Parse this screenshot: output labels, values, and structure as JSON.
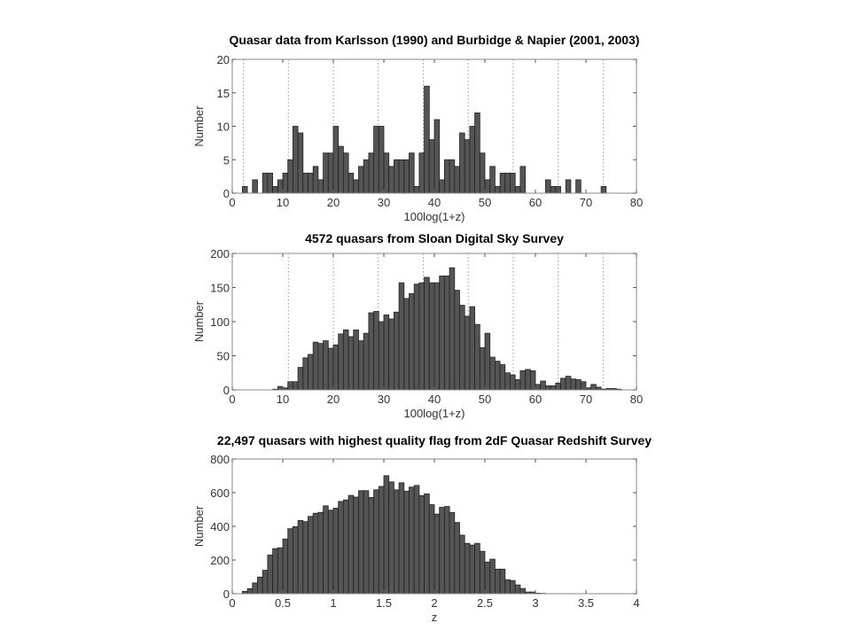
{
  "chart_data": [
    {
      "type": "bar",
      "title": "Quasar data from Karlsson (1990) and Burbidge & Napier (2001, 2003)",
      "xlabel": "100log(1+z)",
      "ylabel": "Number",
      "xlim": [
        0,
        80
      ],
      "ylim": [
        0,
        20
      ],
      "xticks": [
        "0",
        "10",
        "20",
        "30",
        "40",
        "50",
        "60",
        "70",
        "80"
      ],
      "yticks": [
        "0",
        "5",
        "10",
        "15",
        "20"
      ],
      "bin_start": 0,
      "bin_width": 1,
      "values": [
        0,
        0,
        1,
        0,
        2,
        0,
        3,
        3,
        1,
        2,
        3,
        5,
        10,
        9,
        3,
        3,
        4,
        2,
        6,
        6,
        10,
        7,
        6,
        3,
        2,
        4,
        5,
        6,
        10,
        10,
        6,
        4,
        5,
        5,
        5,
        6,
        1,
        6,
        16,
        8,
        11,
        2,
        5,
        5,
        4,
        9,
        8,
        10,
        12,
        6,
        2,
        4,
        1,
        3,
        3,
        3,
        1,
        4,
        0,
        0,
        0,
        0,
        2,
        1,
        1,
        0,
        2,
        0,
        2,
        0,
        0,
        0,
        0,
        1,
        0,
        0,
        0,
        0,
        0,
        0
      ],
      "reference_lines": [
        2.2,
        11.1,
        20.0,
        28.9,
        37.8,
        46.7,
        55.6,
        64.5,
        73.4
      ],
      "bar_color": "#555555",
      "grid": false
    },
    {
      "type": "bar",
      "title": "4572 quasars from Sloan Digital Sky Survey",
      "xlabel": "100log(1+z)",
      "ylabel": "Number",
      "xlim": [
        0,
        80
      ],
      "ylim": [
        0,
        200
      ],
      "xticks": [
        "0",
        "10",
        "20",
        "30",
        "40",
        "50",
        "60",
        "70",
        "80"
      ],
      "yticks": [
        "0",
        "50",
        "100",
        "150",
        "200"
      ],
      "bin_start": 0,
      "bin_width": 1,
      "values": [
        0,
        0,
        0,
        0,
        0,
        0,
        0,
        0,
        1,
        5,
        3,
        12,
        12,
        33,
        47,
        52,
        70,
        68,
        72,
        61,
        66,
        82,
        88,
        78,
        88,
        72,
        83,
        113,
        115,
        100,
        110,
        104,
        114,
        157,
        134,
        141,
        155,
        157,
        165,
        157,
        157,
        167,
        167,
        179,
        146,
        124,
        108,
        122,
        96,
        62,
        83,
        48,
        42,
        37,
        25,
        22,
        15,
        28,
        30,
        28,
        8,
        13,
        6,
        6,
        10,
        17,
        20,
        16,
        15,
        12,
        3,
        8,
        4,
        1,
        2,
        2,
        1,
        0,
        0,
        0
      ],
      "reference_lines": [
        11.1,
        20.0,
        28.9,
        37.8,
        46.7,
        55.6,
        64.5,
        73.4
      ],
      "bar_color": "#555555",
      "grid": false
    },
    {
      "type": "bar",
      "title": "22,497 quasars with highest quality flag from 2dF Quasar Redshift Survey",
      "xlabel": "z",
      "ylabel": "Number",
      "xlim": [
        0,
        4
      ],
      "ylim": [
        0,
        800
      ],
      "xticks": [
        "0",
        "0.5",
        "1",
        "1.5",
        "2",
        "2.5",
        "3",
        "3.5",
        "4"
      ],
      "yticks": [
        "0",
        "200",
        "400",
        "600",
        "800"
      ],
      "bin_start": 0.1,
      "bin_width": 0.05,
      "values": [
        14,
        30,
        64,
        99,
        139,
        230,
        268,
        273,
        325,
        386,
        398,
        435,
        428,
        459,
        478,
        483,
        522,
        496,
        508,
        548,
        557,
        584,
        574,
        612,
        612,
        572,
        617,
        637,
        701,
        664,
        617,
        659,
        609,
        633,
        643,
        583,
        593,
        529,
        473,
        513,
        518,
        482,
        423,
        348,
        299,
        289,
        299,
        252,
        188,
        205,
        146,
        146,
        83,
        78,
        52,
        31,
        10,
        10,
        3,
        2
      ],
      "reference_lines": [],
      "bar_color": "#555555",
      "grid": false
    }
  ]
}
